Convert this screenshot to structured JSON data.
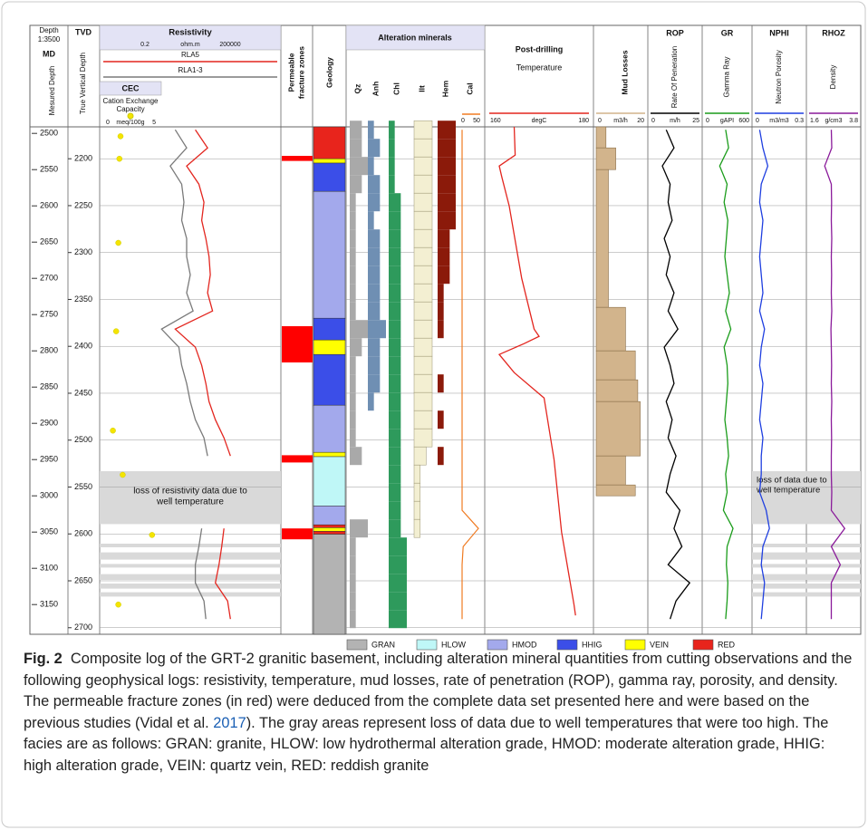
{
  "figure": {
    "depth": {
      "title": "Depth",
      "scale": "1:3500",
      "md_title": "MD",
      "md_label": "Mesured Depth",
      "md_lim": [
        2491,
        3191
      ],
      "md_ticks": [
        2500,
        2550,
        2600,
        2650,
        2700,
        2750,
        2800,
        2850,
        2900,
        2950,
        3000,
        3050,
        3100,
        3150
      ]
    },
    "tvd": {
      "title": "TVD",
      "label": "True Vertical Depth",
      "tvd_lim": [
        2166,
        2707
      ],
      "tvd_ticks": [
        2200,
        2250,
        2300,
        2350,
        2400,
        2450,
        2500,
        2550,
        2600,
        2650,
        2700
      ]
    },
    "sample_md": [
      2495,
      2520,
      2545,
      2570,
      2595,
      2620,
      2645,
      2670,
      2695,
      2720,
      2745,
      2770,
      2795,
      2820,
      2845,
      2870,
      2895,
      2920,
      2945,
      2970,
      2995,
      3020,
      3045,
      3070,
      3095,
      3120,
      3145,
      3170
    ],
    "resistivity": {
      "title": "Resistivity",
      "unit": "ohm.m",
      "xlim": [
        0.2,
        200000
      ],
      "log": true,
      "series": [
        {
          "name": "RLA5",
          "color": "#e3261f",
          "values": [
            300,
            800,
            150,
            400,
            600,
            500,
            700,
            900,
            1000,
            800,
            1200,
            60,
            300,
            500,
            700,
            900,
            1500,
            3000,
            5000,
            null,
            null,
            null,
            3000,
            2500,
            2000,
            1500,
            4000,
            5000
          ]
        },
        {
          "name": "RLA1-3",
          "color": "#7a7a7a",
          "values": [
            60,
            150,
            40,
            100,
            120,
            100,
            150,
            150,
            200,
            150,
            250,
            20,
            80,
            100,
            150,
            200,
            300,
            600,
            800,
            null,
            null,
            null,
            500,
            400,
            300,
            300,
            600,
            700
          ]
        }
      ]
    },
    "cec": {
      "title": "CEC",
      "label_lines": [
        "Cation Exchange",
        "Capacity"
      ],
      "unit": "meq/100g",
      "xlim": [
        0,
        5
      ],
      "color": "#f5e400",
      "md": [
        2504,
        2535,
        2651,
        2773,
        2910,
        2971,
        3054,
        3150
      ],
      "values": [
        1.5,
        1.4,
        1.3,
        1.1,
        0.8,
        1.7,
        4.4,
        1.3
      ]
    },
    "fracture_zones": {
      "title_lines": [
        "Permeable",
        "fracture zones"
      ],
      "color": "#ff0000",
      "intervals": [
        [
          2531,
          2538
        ],
        [
          2766,
          2816
        ],
        [
          2944,
          2954
        ],
        [
          3045,
          3060
        ]
      ]
    },
    "geology": {
      "title": "Geology",
      "intervals": [
        {
          "facies": "RED",
          "top": 2491,
          "base": 2535
        },
        {
          "facies": "VEIN",
          "top": 2535,
          "base": 2541
        },
        {
          "facies": "HHIG",
          "top": 2541,
          "base": 2580
        },
        {
          "facies": "HMOD",
          "top": 2580,
          "base": 2755
        },
        {
          "facies": "HHIG",
          "top": 2755,
          "base": 2785
        },
        {
          "facies": "VEIN",
          "top": 2785,
          "base": 2805
        },
        {
          "facies": "HHIG",
          "top": 2805,
          "base": 2875
        },
        {
          "facies": "HMOD",
          "top": 2875,
          "base": 2940
        },
        {
          "facies": "VEIN",
          "top": 2940,
          "base": 2946
        },
        {
          "facies": "HLOW",
          "top": 2946,
          "base": 3014
        },
        {
          "facies": "HMOD",
          "top": 3014,
          "base": 3040
        },
        {
          "facies": "RED",
          "top": 3040,
          "base": 3044
        },
        {
          "facies": "VEIN",
          "top": 3044,
          "base": 3049
        },
        {
          "facies": "RED",
          "top": 3049,
          "base": 3053
        },
        {
          "facies": "GRAN",
          "top": 3053,
          "base": 3191
        }
      ]
    },
    "alteration": {
      "title": "Alteration minerals",
      "xlim": [
        0,
        3
      ],
      "minerals": [
        {
          "name": "Qz",
          "color": "#a9a9a9",
          "values": [
            2,
            2,
            3,
            2,
            1,
            1,
            1,
            1,
            1,
            1,
            1,
            3,
            2,
            1,
            1,
            1,
            1,
            1,
            2,
            0,
            0,
            0,
            3,
            1,
            1,
            1,
            1,
            1
          ]
        },
        {
          "name": "Anh",
          "color": "#6f8fb3",
          "values": [
            1,
            2,
            1,
            2,
            2,
            1,
            2,
            2,
            2,
            2,
            2,
            3,
            2,
            2,
            2,
            1,
            0,
            0,
            0,
            0,
            0,
            0,
            0,
            0,
            0,
            0,
            0,
            0
          ]
        },
        {
          "name": "Chl",
          "color": "#2e9a5c",
          "values": [
            1,
            1,
            1,
            1,
            2,
            2,
            2,
            2,
            2,
            2,
            2,
            2,
            2,
            2,
            2,
            2,
            2,
            2,
            2,
            2,
            2,
            2,
            2,
            3,
            3,
            3,
            3,
            3
          ]
        },
        {
          "name": "Ilt",
          "color": "#f3efd2",
          "values": [
            3,
            3,
            3,
            3,
            3,
            3,
            3,
            3,
            3,
            3,
            3,
            3,
            3,
            3,
            3,
            3,
            3,
            3,
            2,
            1,
            1,
            1,
            1,
            0,
            0,
            0,
            0,
            0
          ]
        },
        {
          "name": "Hem",
          "color": "#8b1a0a",
          "values": [
            3,
            3,
            3,
            3,
            3,
            3,
            2,
            2,
            2,
            1,
            1,
            1,
            0,
            0,
            1,
            0,
            1,
            0,
            1,
            0,
            0,
            0,
            0,
            0,
            0,
            0,
            0,
            0
          ]
        }
      ],
      "cal": {
        "name": "Cal",
        "color": "#f07b22",
        "xlim": [
          0,
          50
        ],
        "values": [
          0,
          0,
          0,
          0,
          0,
          0,
          0,
          0,
          0,
          0,
          0,
          0,
          0,
          0,
          0,
          0,
          0,
          0,
          0,
          0,
          0,
          0,
          45,
          3,
          0,
          0,
          0,
          0
        ]
      }
    },
    "temperature": {
      "title_lines": [
        "Post-drilling",
        "Temperature"
      ],
      "unit": "degC",
      "xlim": [
        160,
        180
      ],
      "color": "#e3261f",
      "md": [
        2491,
        2530,
        2545,
        2560,
        2600,
        2700,
        2770,
        2780,
        2790,
        2805,
        2830,
        2865,
        2950,
        3050,
        3150,
        3165
      ],
      "values": [
        165,
        165.2,
        162,
        162.5,
        164,
        166.5,
        169,
        170,
        167,
        162,
        165,
        171,
        173,
        174.5,
        177,
        177.3
      ]
    },
    "mud_losses": {
      "title": "Mud Losses",
      "unit": "m3/h",
      "xlim": [
        0,
        20
      ],
      "color": "#d2b48c",
      "intervals": [
        {
          "top": 2491,
          "base": 2520,
          "value": 4
        },
        {
          "top": 2520,
          "base": 2550,
          "value": 8
        },
        {
          "top": 2550,
          "base": 2740,
          "value": 5
        },
        {
          "top": 2740,
          "base": 2800,
          "value": 12
        },
        {
          "top": 2800,
          "base": 2840,
          "value": 16
        },
        {
          "top": 2840,
          "base": 2870,
          "value": 17
        },
        {
          "top": 2870,
          "base": 2945,
          "value": 18
        },
        {
          "top": 2945,
          "base": 2985,
          "value": 12
        },
        {
          "top": 2985,
          "base": 3000,
          "value": 16
        }
      ]
    },
    "logs": [
      {
        "title": "ROP",
        "label": "Rate Of Peneration",
        "unit": "m/h",
        "xlim": [
          0,
          25
        ],
        "color": "#000000",
        "values": [
          8,
          12,
          6,
          10,
          9,
          11,
          7,
          10,
          8,
          12,
          9,
          14,
          7,
          10,
          12,
          8,
          11,
          9,
          13,
          10,
          8,
          15,
          12,
          16,
          9,
          20,
          13,
          10
        ]
      },
      {
        "title": "GR",
        "label": "Gamma Ray",
        "unit": "gAPI",
        "xlim": [
          0,
          600
        ],
        "color": "#1a9c1a",
        "values": [
          280,
          320,
          200,
          300,
          260,
          310,
          290,
          270,
          300,
          330,
          280,
          350,
          260,
          300,
          310,
          290,
          270,
          300,
          320,
          280,
          300,
          250,
          380,
          300,
          290,
          310,
          300,
          280
        ]
      },
      {
        "title": "NPHI",
        "label": "Neutron Porosity",
        "unit": "m3/m3",
        "xlim": [
          0,
          0.3
        ],
        "color": "#1f3fe0",
        "values": [
          0.03,
          0.05,
          0.08,
          0.04,
          0.03,
          0.05,
          0.04,
          0.03,
          0.04,
          0.05,
          0.03,
          0.06,
          0.04,
          0.03,
          0.05,
          0.04,
          0.03,
          0.05,
          0.04,
          0.04,
          0.03,
          0.07,
          0.09,
          0.05,
          0.04,
          0.06,
          0.05,
          0.04
        ]
      },
      {
        "title": "RHOZ",
        "label": "Density",
        "unit": "g/cm3",
        "xlim": [
          1.6,
          3.8
        ],
        "color": "#8a1a9a",
        "values": [
          2.6,
          2.62,
          2.3,
          2.6,
          2.61,
          2.6,
          2.62,
          2.6,
          2.61,
          2.6,
          2.62,
          2.58,
          2.6,
          2.61,
          2.6,
          2.62,
          2.6,
          2.61,
          2.6,
          2.6,
          2.62,
          2.6,
          3.2,
          2.6,
          3.0,
          2.6,
          2.6,
          2.6
        ]
      }
    ],
    "loss_zones": {
      "color": "#d9d9d9",
      "resistivity_label_lines": [
        "loss of resistivity data due to",
        "well temperature"
      ],
      "logs_label_lines": [
        "loss of data due to",
        "well temperature"
      ],
      "main": [
        2966,
        3039
      ],
      "stripes": [
        [
          3066,
          3071
        ],
        [
          3078,
          3088
        ],
        [
          3094,
          3099
        ],
        [
          3108,
          3116
        ],
        [
          3121,
          3128
        ],
        [
          3133,
          3139
        ]
      ]
    },
    "legend": [
      {
        "facies": "GRAN",
        "color": "#b3b3b3"
      },
      {
        "facies": "HLOW",
        "color": "#bff7f7"
      },
      {
        "facies": "HMOD",
        "color": "#a3a9ec"
      },
      {
        "facies": "HHIG",
        "color": "#3b4ee8"
      },
      {
        "facies": "VEIN",
        "color": "#ffff00"
      },
      {
        "facies": "RED",
        "color": "#e8241c"
      }
    ],
    "caption": {
      "label": "Fig. 2",
      "text_before": "Composite log of the GRT-2 granitic basement, including alteration mineral quantities from cutting observations and the following geophysical logs: resistivity, temperature, mud losses, rate of penetration (ROP), gamma ray, porosity, and density. The permeable fracture zones (in red) were deduced from the complete data set presented here and were based on the previous studies (Vidal et al. ",
      "link": "2017",
      "text_after": "). The gray areas represent loss of data due to well temperatures that were too high. The facies are as follows: GRAN: granite, HLOW: low hydrothermal alteration grade, HMOD: moderate alteration grade, HHIG: high alteration grade, VEIN: quartz vein, RED: reddish granite"
    }
  }
}
